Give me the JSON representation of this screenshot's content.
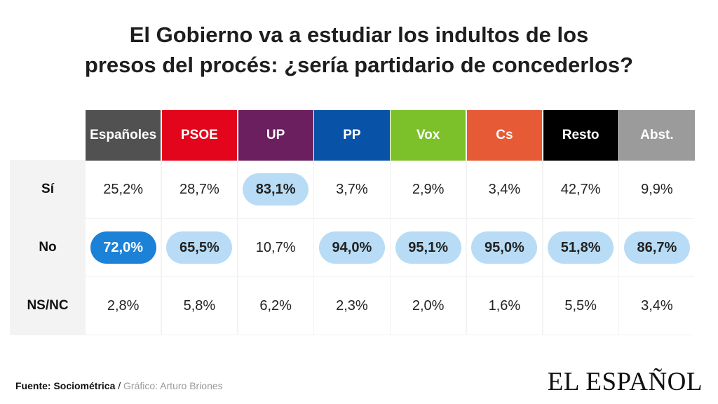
{
  "title": {
    "line1": "El Gobierno va a estudiar los indultos de los",
    "line2": "presos del procés: ¿sería partidario de concederlos?"
  },
  "chart_data": {
    "type": "table",
    "columns": [
      {
        "label": "Españoles",
        "color": "#515151"
      },
      {
        "label": "PSOE",
        "color": "#e3051b"
      },
      {
        "label": "UP",
        "color": "#6b1f5e"
      },
      {
        "label": "PP",
        "color": "#0853a8"
      },
      {
        "label": "Vox",
        "color": "#7cc02a"
      },
      {
        "label": "Cs",
        "color": "#e65a36"
      },
      {
        "label": "Resto",
        "color": "#000000"
      },
      {
        "label": "Abst.",
        "color": "#9b9b9b"
      }
    ],
    "rows": [
      {
        "label": "Sí",
        "values": [
          "25,2%",
          "28,7%",
          "83,1%",
          "3,7%",
          "2,9%",
          "3,4%",
          "42,7%",
          "9,9%"
        ],
        "highlight": [
          null,
          null,
          "light",
          null,
          null,
          null,
          null,
          null
        ]
      },
      {
        "label": "No",
        "values": [
          "72,0%",
          "65,5%",
          "10,7%",
          "94,0%",
          "95,1%",
          "95,0%",
          "51,8%",
          "86,7%"
        ],
        "highlight": [
          "dark",
          "light",
          null,
          "light",
          "light",
          "light",
          "light",
          "light"
        ]
      },
      {
        "label": "NS/NC",
        "values": [
          "2,8%",
          "5,8%",
          "6,2%",
          "2,3%",
          "2,0%",
          "1,6%",
          "5,5%",
          "3,4%"
        ],
        "highlight": [
          null,
          null,
          null,
          null,
          null,
          null,
          null,
          null
        ]
      }
    ]
  },
  "footer": {
    "source": "Fuente: Sociométrica",
    "separator": " / ",
    "credit": "Gráfico: Arturo Briones"
  },
  "logo": "EL ESPAÑOL"
}
